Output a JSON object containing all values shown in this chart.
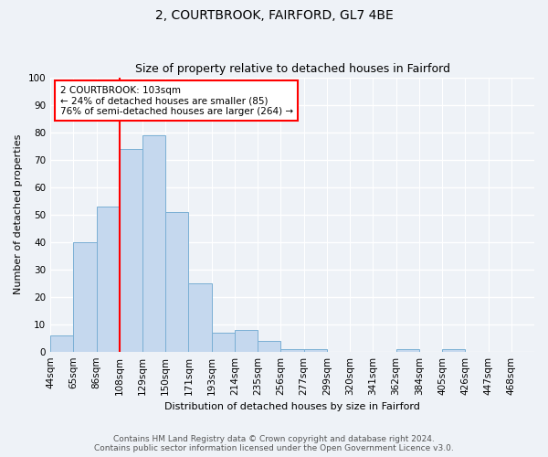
{
  "title": "2, COURTBROOK, FAIRFORD, GL7 4BE",
  "subtitle": "Size of property relative to detached houses in Fairford",
  "xlabel": "Distribution of detached houses by size in Fairford",
  "ylabel": "Number of detached properties",
  "bin_labels": [
    "44sqm",
    "65sqm",
    "86sqm",
    "108sqm",
    "129sqm",
    "150sqm",
    "171sqm",
    "193sqm",
    "214sqm",
    "235sqm",
    "256sqm",
    "277sqm",
    "299sqm",
    "320sqm",
    "341sqm",
    "362sqm",
    "384sqm",
    "405sqm",
    "426sqm",
    "447sqm",
    "468sqm"
  ],
  "bar_values": [
    6,
    40,
    53,
    74,
    79,
    51,
    25,
    7,
    8,
    4,
    1,
    1,
    0,
    0,
    0,
    1,
    0,
    1,
    0,
    0,
    0
  ],
  "bar_color": "#c5d8ee",
  "bar_edge_color": "#7aafd4",
  "vline_index": 3,
  "vline_color": "red",
  "annotation_text": "2 COURTBROOK: 103sqm\n← 24% of detached houses are smaller (85)\n76% of semi-detached houses are larger (264) →",
  "annotation_box_color": "white",
  "annotation_box_edge": "red",
  "ylim": [
    0,
    100
  ],
  "yticks": [
    0,
    10,
    20,
    30,
    40,
    50,
    60,
    70,
    80,
    90,
    100
  ],
  "footer_line1": "Contains HM Land Registry data © Crown copyright and database right 2024.",
  "footer_line2": "Contains public sector information licensed under the Open Government Licence v3.0.",
  "background_color": "#eef2f7",
  "plot_background_color": "#eef2f7",
  "grid_color": "#ffffff",
  "title_fontsize": 10,
  "subtitle_fontsize": 9,
  "ylabel_fontsize": 8,
  "xlabel_fontsize": 8,
  "tick_fontsize": 7.5,
  "footer_fontsize": 6.5,
  "annotation_fontsize": 7.5
}
